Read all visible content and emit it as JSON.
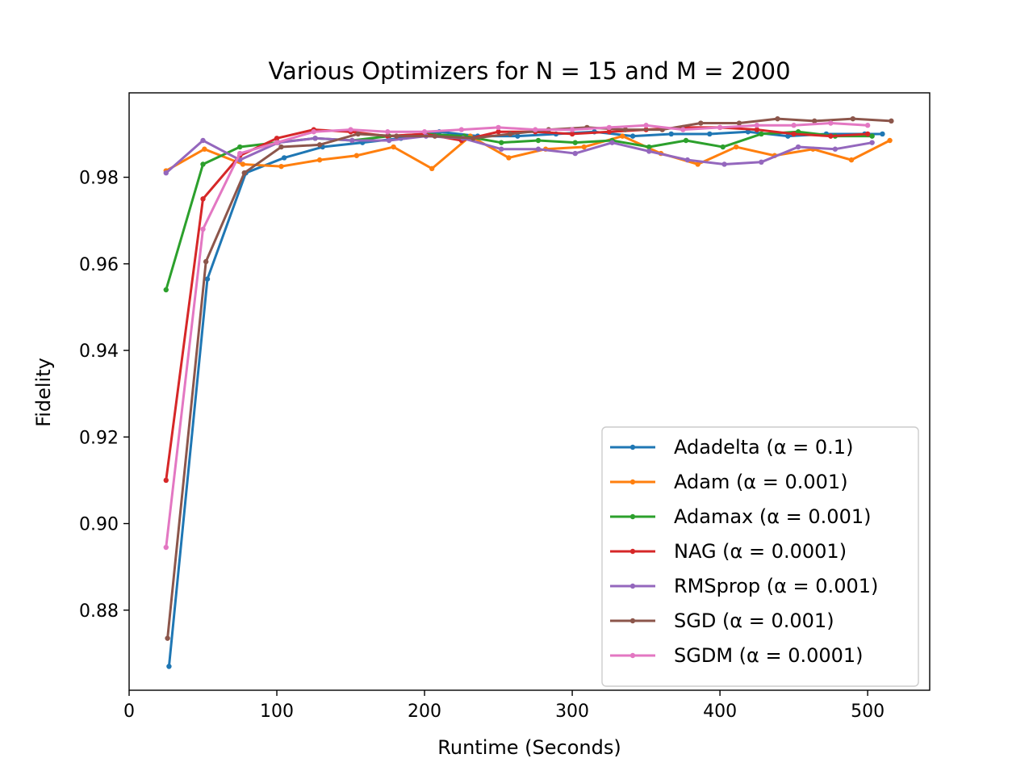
{
  "chart_data": {
    "type": "line",
    "title": "Various Optimizers for N = 15 and M = 2000",
    "xlabel": "Runtime (Seconds)",
    "ylabel": "Fidelity",
    "xlim": [
      0,
      542
    ],
    "ylim": [
      0.8615,
      0.9995
    ],
    "xticks": [
      0,
      100,
      200,
      300,
      400,
      500
    ],
    "xtick_labels": [
      "0",
      "100",
      "200",
      "300",
      "400",
      "500"
    ],
    "yticks": [
      0.88,
      0.9,
      0.92,
      0.94,
      0.96,
      0.98
    ],
    "ytick_labels": [
      "0.88",
      "0.90",
      "0.92",
      "0.94",
      "0.96",
      "0.98"
    ],
    "grid": false,
    "legend_position": "bottom-right",
    "series": [
      {
        "name": "Adadelta (α = 0.1)",
        "color": "#1f77b4",
        "x": [
          27,
          53,
          79,
          105,
          131,
          158,
          184,
          210,
          236,
          263,
          289,
          315,
          341,
          367,
          393,
          419,
          446,
          472,
          498,
          510
        ],
        "y": [
          0.867,
          0.9565,
          0.981,
          0.9845,
          0.987,
          0.988,
          0.989,
          0.9905,
          0.9895,
          0.9895,
          0.99,
          0.9905,
          0.9895,
          0.99,
          0.99,
          0.9905,
          0.9895,
          0.99,
          0.99,
          0.99
        ]
      },
      {
        "name": "Adam (α = 0.001)",
        "color": "#ff7f0e",
        "x": [
          25,
          51,
          77,
          103,
          129,
          154,
          179,
          205,
          231,
          257,
          282,
          308,
          334,
          360,
          385,
          411,
          437,
          463,
          489,
          515
        ],
        "y": [
          0.9815,
          0.9865,
          0.983,
          0.9825,
          0.984,
          0.985,
          0.987,
          0.982,
          0.9895,
          0.9845,
          0.9865,
          0.987,
          0.9895,
          0.9855,
          0.983,
          0.987,
          0.985,
          0.9865,
          0.984,
          0.9885
        ]
      },
      {
        "name": "Adamax (α = 0.001)",
        "color": "#2ca02c",
        "x": [
          25,
          50,
          75,
          100,
          126,
          151,
          176,
          201,
          227,
          252,
          277,
          302,
          327,
          352,
          377,
          402,
          428,
          453,
          478,
          503
        ],
        "y": [
          0.954,
          0.983,
          0.987,
          0.988,
          0.989,
          0.9885,
          0.9895,
          0.99,
          0.9895,
          0.988,
          0.9885,
          0.988,
          0.9885,
          0.987,
          0.9885,
          0.987,
          0.99,
          0.9905,
          0.9895,
          0.9895
        ]
      },
      {
        "name": "NAG (α = 0.0001)",
        "color": "#d62728",
        "x": [
          25,
          50,
          75,
          100,
          125,
          150,
          175,
          200,
          225,
          250,
          275,
          300,
          325,
          350,
          375,
          400,
          425,
          450,
          475,
          500
        ],
        "y": [
          0.91,
          0.975,
          0.985,
          0.989,
          0.991,
          0.9905,
          0.9895,
          0.99,
          0.9885,
          0.9905,
          0.9905,
          0.99,
          0.9905,
          0.991,
          0.9915,
          0.9915,
          0.991,
          0.99,
          0.9895,
          0.99
        ]
      },
      {
        "name": "RMSprop (α = 0.001)",
        "color": "#9467bd",
        "x": [
          25,
          50,
          75,
          101,
          126,
          151,
          176,
          201,
          226,
          252,
          277,
          302,
          327,
          352,
          378,
          403,
          428,
          453,
          478,
          503
        ],
        "y": [
          0.981,
          0.9885,
          0.984,
          0.988,
          0.989,
          0.9885,
          0.9885,
          0.9895,
          0.989,
          0.9865,
          0.9865,
          0.9855,
          0.988,
          0.986,
          0.984,
          0.983,
          0.9835,
          0.987,
          0.9865,
          0.988
        ]
      },
      {
        "name": "SGD (α = 0.001)",
        "color": "#8c564b",
        "x": [
          26,
          52,
          78,
          103,
          129,
          155,
          181,
          207,
          233,
          258,
          284,
          310,
          336,
          361,
          387,
          413,
          439,
          464,
          490,
          516
        ],
        "y": [
          0.8735,
          0.9605,
          0.981,
          0.987,
          0.9875,
          0.99,
          0.9895,
          0.9895,
          0.989,
          0.99,
          0.991,
          0.9915,
          0.991,
          0.991,
          0.9925,
          0.9925,
          0.9935,
          0.993,
          0.9935,
          0.993
        ]
      },
      {
        "name": "SGDM (α = 0.0001)",
        "color": "#e377c2",
        "x": [
          25,
          50,
          75,
          100,
          125,
          150,
          175,
          200,
          225,
          250,
          275,
          300,
          325,
          350,
          375,
          400,
          425,
          450,
          475,
          500
        ],
        "y": [
          0.8945,
          0.968,
          0.9855,
          0.988,
          0.9905,
          0.991,
          0.9905,
          0.9905,
          0.991,
          0.9915,
          0.991,
          0.991,
          0.9915,
          0.992,
          0.991,
          0.9915,
          0.992,
          0.992,
          0.9925,
          0.992
        ]
      }
    ]
  }
}
